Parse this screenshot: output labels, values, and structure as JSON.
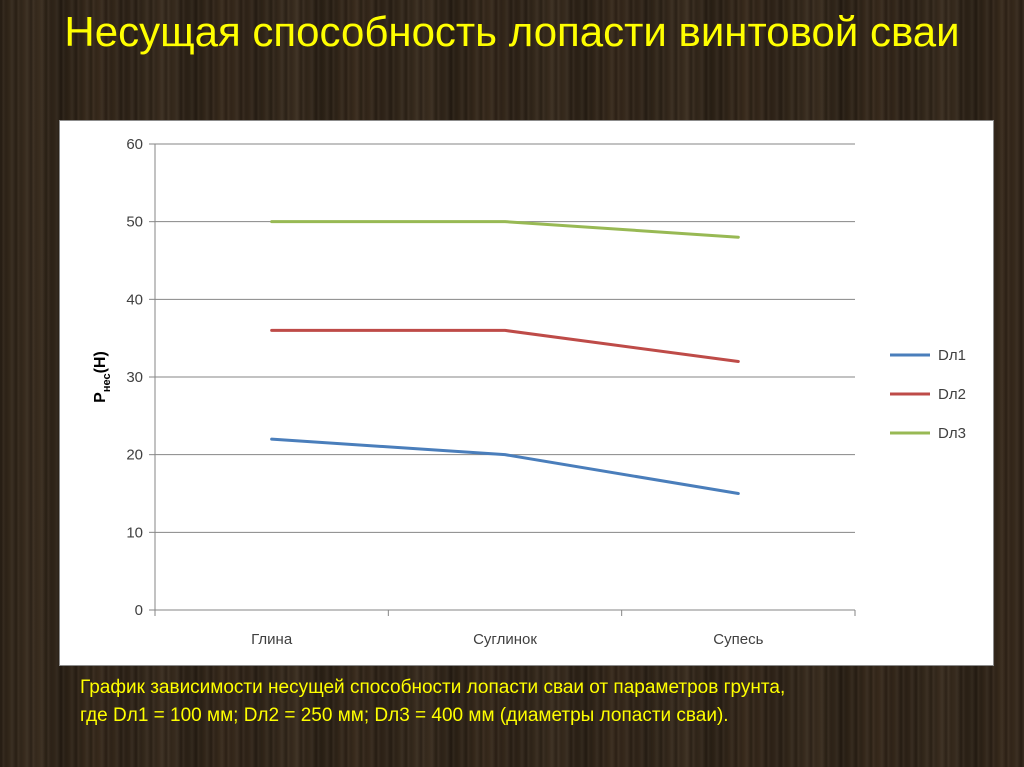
{
  "slide": {
    "title": "Несущая способность лопасти винтовой сваи",
    "caption_line1": "График зависимости несущей способности лопасти сваи от параметров грунта,",
    "caption_line2": "где Dл1 = 100 мм; Dл2 = 250 мм; Dл3 = 400 мм (диаметры лопасти сваи)."
  },
  "chart_data": {
    "type": "line",
    "categories": [
      "Глина",
      "Суглинок",
      "Супесь"
    ],
    "series": [
      {
        "name": "Dл1",
        "values": [
          22,
          20,
          15
        ],
        "color": "#4a7ebb"
      },
      {
        "name": "Dл2",
        "values": [
          36,
          36,
          32
        ],
        "color": "#be4b48"
      },
      {
        "name": "Dл3",
        "values": [
          50,
          50,
          48
        ],
        "color": "#98b954"
      }
    ],
    "ylabel_main": "P",
    "ylabel_sub": "нес",
    "ylabel_tail": "(Н)",
    "ylim": [
      0,
      60
    ],
    "yticks": [
      0,
      10,
      20,
      30,
      40,
      50,
      60
    ],
    "grid": true,
    "legend_position": "right"
  }
}
